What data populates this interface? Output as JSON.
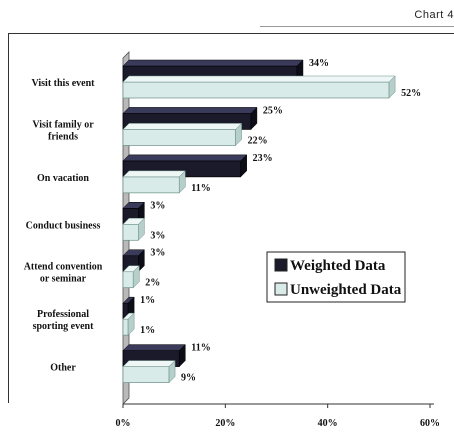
{
  "header": {
    "chart_label": "Chart 4"
  },
  "chart_data": {
    "type": "bar",
    "orientation": "horizontal",
    "categories": [
      "Visit this event",
      "Visit family or friends",
      "On vacation",
      "Conduct business",
      "Attend convention or seminar",
      "Professional sporting event",
      "Other"
    ],
    "category_lines": [
      [
        "Visit this event"
      ],
      [
        "Visit family or",
        "friends"
      ],
      [
        "On vacation"
      ],
      [
        "Conduct business"
      ],
      [
        "Attend convention",
        "or seminar"
      ],
      [
        "Professional",
        "sporting event"
      ],
      [
        "Other"
      ]
    ],
    "series": [
      {
        "name": "Weighted Data",
        "values": [
          34,
          25,
          23,
          3,
          3,
          1,
          11
        ],
        "labels": [
          "34%",
          "25%",
          "23%",
          "3%",
          "3%",
          "1%",
          "11%"
        ],
        "color": "#1a1a2a"
      },
      {
        "name": "Unweighted Data",
        "values": [
          52,
          22,
          11,
          3,
          2,
          1,
          9
        ],
        "labels": [
          "52%",
          "22%",
          "11%",
          "3%",
          "2%",
          "1%",
          "9%"
        ],
        "color": "#d8ebe8"
      }
    ],
    "xlim": [
      0,
      60
    ],
    "xticks": [
      0,
      20,
      40,
      60
    ],
    "xtick_labels": [
      "0%",
      "20%",
      "40%",
      "60%"
    ],
    "legend": {
      "placement": "center-right",
      "entries": [
        "Weighted Data",
        "Unweighted Data"
      ]
    },
    "grid": false,
    "style": "3d"
  }
}
